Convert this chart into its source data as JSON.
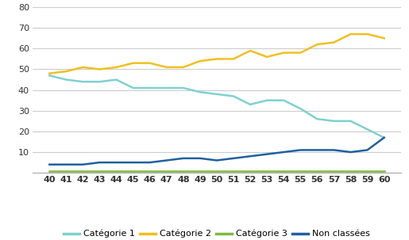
{
  "ages": [
    40,
    41,
    42,
    43,
    44,
    45,
    46,
    47,
    48,
    49,
    50,
    51,
    52,
    53,
    54,
    55,
    56,
    57,
    58,
    59,
    60
  ],
  "cat1": [
    47,
    45,
    44,
    44,
    45,
    41,
    41,
    41,
    41,
    39,
    38,
    37,
    33,
    35,
    35,
    31,
    26,
    25,
    25,
    21,
    17
  ],
  "cat2": [
    48,
    49,
    51,
    50,
    51,
    53,
    53,
    51,
    51,
    54,
    55,
    55,
    59,
    56,
    58,
    58,
    62,
    63,
    67,
    67,
    65
  ],
  "cat3": [
    1,
    1,
    1,
    1,
    1,
    1,
    1,
    1,
    1,
    1,
    1,
    1,
    1,
    1,
    1,
    1,
    1,
    1,
    1,
    1,
    1
  ],
  "noncl": [
    4,
    4,
    4,
    5,
    5,
    5,
    5,
    6,
    7,
    7,
    6,
    7,
    8,
    9,
    10,
    11,
    11,
    11,
    10,
    11,
    17
  ],
  "cat1_color": "#80d0d0",
  "cat2_color": "#f0c020",
  "cat3_color": "#80b840",
  "noncl_color": "#2060a0",
  "ylim": [
    0,
    80
  ],
  "yticks": [
    0,
    10,
    20,
    30,
    40,
    50,
    60,
    70,
    80
  ],
  "legend_labels": [
    "Catégorie 1",
    "Catégorie 2",
    "Catégorie 3",
    "Non classées"
  ],
  "background_color": "#ffffff",
  "grid_color": "#cccccc"
}
